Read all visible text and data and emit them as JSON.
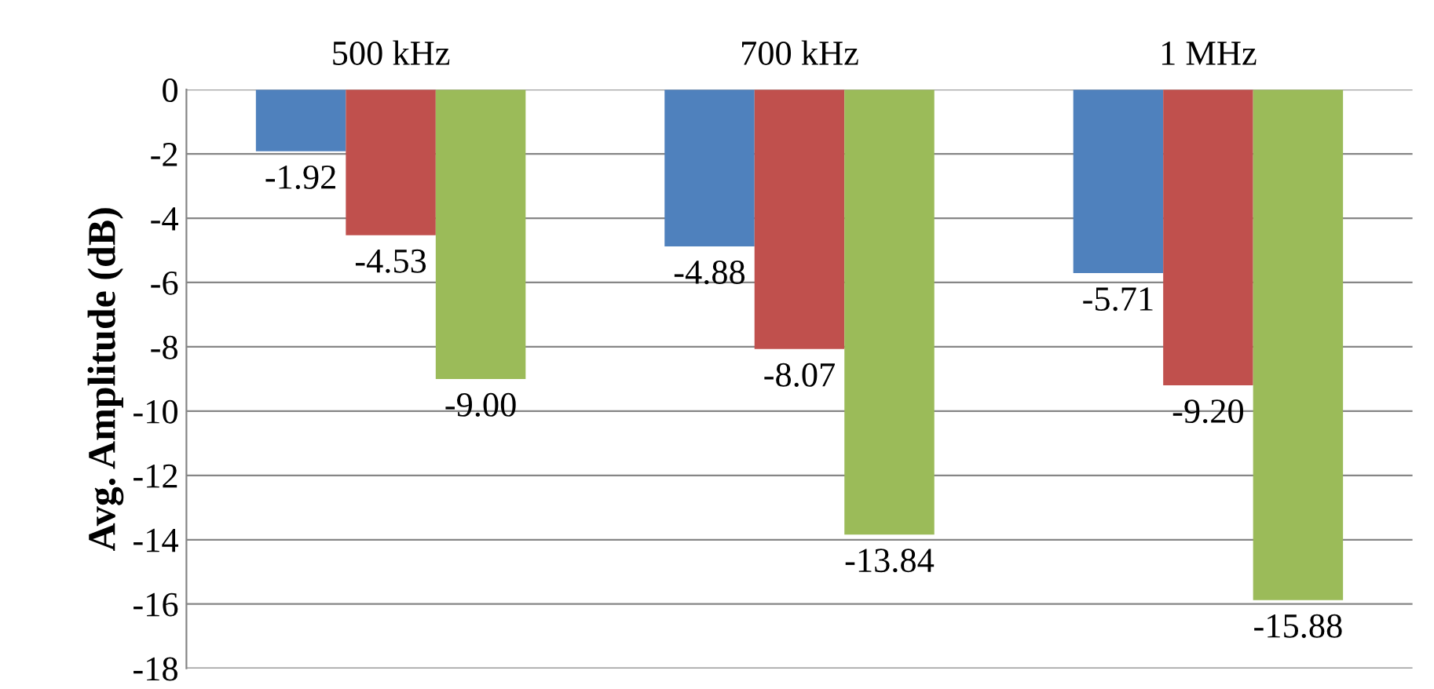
{
  "chart_data": {
    "type": "bar",
    "ylabel": "Avg. Amplitude (dB)",
    "categories": [
      "500 kHz",
      "700 kHz",
      "1 MHz"
    ],
    "series": [
      {
        "color": "#4f81bd",
        "values": [
          -1.92,
          -4.88,
          -5.71
        ],
        "value_labels": [
          "-1.92",
          "-4.88",
          "-5.71"
        ]
      },
      {
        "color": "#c0504d",
        "values": [
          -4.53,
          -8.07,
          -9.2
        ],
        "value_labels": [
          "-4.53",
          "-8.07",
          "-9.20"
        ]
      },
      {
        "color": "#9bbb59",
        "values": [
          -9.0,
          -13.84,
          -15.88
        ],
        "value_labels": [
          "-9.00",
          "-13.84",
          "-15.88"
        ]
      }
    ],
    "ylim": [
      -18,
      0
    ],
    "yticks": [
      0,
      -2,
      -4,
      -6,
      -8,
      -10,
      -12,
      -14,
      -16,
      -18
    ],
    "grid": "y",
    "legend": false
  }
}
